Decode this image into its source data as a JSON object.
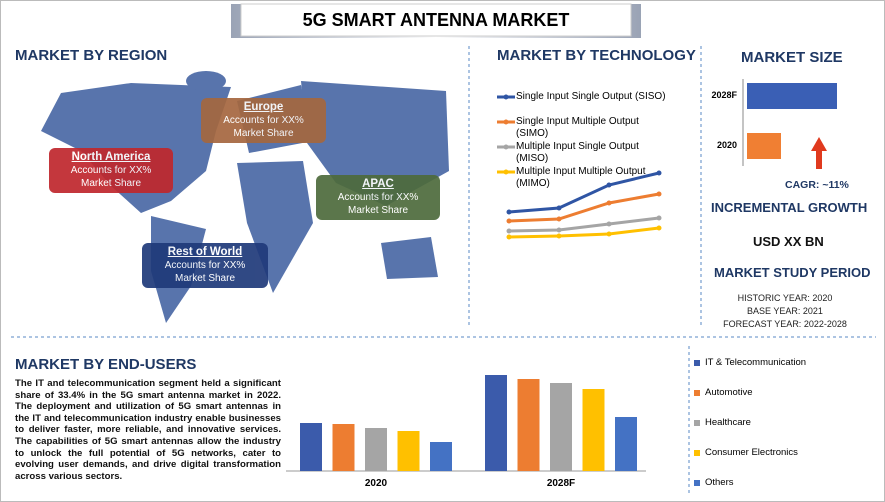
{
  "title": "5G SMART ANTENNA MARKET",
  "region": {
    "heading": "MARKET BY REGION",
    "boxes": [
      {
        "name": "North America",
        "line1": "Accounts for XX%",
        "line2": "Market Share"
      },
      {
        "name": "Europe",
        "line1": "Accounts for XX%",
        "line2": "Market Share"
      },
      {
        "name": "APAC",
        "line1": "Accounts for XX%",
        "line2": "Market Share"
      },
      {
        "name": "Rest of World",
        "line1": "Accounts for XX%",
        "line2": "Market Share"
      }
    ]
  },
  "technology": {
    "heading": "MARKET BY TECHNOLOGY"
  },
  "market_size": {
    "heading": "MARKET SIZE",
    "cagr": "CAGR:  ~11%",
    "growth_heading": "INCREMENTAL GROWTH",
    "growth_value": "USD XX BN",
    "period_heading": "MARKET STUDY PERIOD",
    "period": [
      "HISTORIC YEAR: 2020",
      "BASE YEAR: 2021",
      "FORECAST YEAR: 2022-2028"
    ]
  },
  "end_users": {
    "heading": "MARKET BY END-USERS",
    "text": "The IT and telecommunication segment held a significant share of 33.4% in the 5G smart antenna market in 2022. The deployment and utilization of 5G smart antennas in the IT and telecommunication industry enable businesses to deliver faster, more reliable, and innovative services. The capabilities of 5G smart antennas allow the industry to unlock the full potential of 5G networks, cater to evolving user demands, and drive digital transformation across various sectors."
  },
  "chart_data": [
    {
      "type": "line",
      "categories": [
        null,
        null,
        null,
        null
      ],
      "ylim": [
        0,
        8
      ],
      "series": [
        {
          "name": "Single Input Single Output (SISO)",
          "color": "#2f55a4",
          "values": [
            3.4,
            3.8,
            6.1,
            7.3
          ]
        },
        {
          "name": "Single Input Multiple Output (SIMO)",
          "color": "#ed7d31",
          "values": [
            2.5,
            2.7,
            4.3,
            5.2
          ]
        },
        {
          "name": "Multiple Input Single Output (MISO)",
          "color": "#a5a5a5",
          "values": [
            1.5,
            1.6,
            2.2,
            2.8
          ]
        },
        {
          "name": "Multiple Input Multiple Output (MIMO)",
          "color": "#ffc000",
          "values": [
            0.9,
            1.0,
            1.2,
            1.8
          ]
        }
      ]
    },
    {
      "type": "hbar",
      "categories": [
        "2028F",
        "2020"
      ],
      "values": [
        90,
        34
      ],
      "colors": [
        "#3a5fb5",
        "#f07f33"
      ],
      "xlim": [
        0,
        100
      ]
    },
    {
      "type": "bar",
      "categories": [
        "2020",
        "2028F"
      ],
      "ylim": [
        0,
        100
      ],
      "series": [
        {
          "name": "IT & Telecommunication",
          "color": "#3b5bab",
          "values": [
            48,
            96
          ]
        },
        {
          "name": "Automotive",
          "color": "#ed7d31",
          "values": [
            47,
            92
          ]
        },
        {
          "name": "Healthcare",
          "color": "#a5a5a5",
          "values": [
            43,
            88
          ]
        },
        {
          "name": "Consumer Electronics",
          "color": "#ffc000",
          "values": [
            40,
            82
          ]
        },
        {
          "name": "Others",
          "color": "#4472c4",
          "values": [
            29,
            54
          ]
        }
      ]
    }
  ]
}
